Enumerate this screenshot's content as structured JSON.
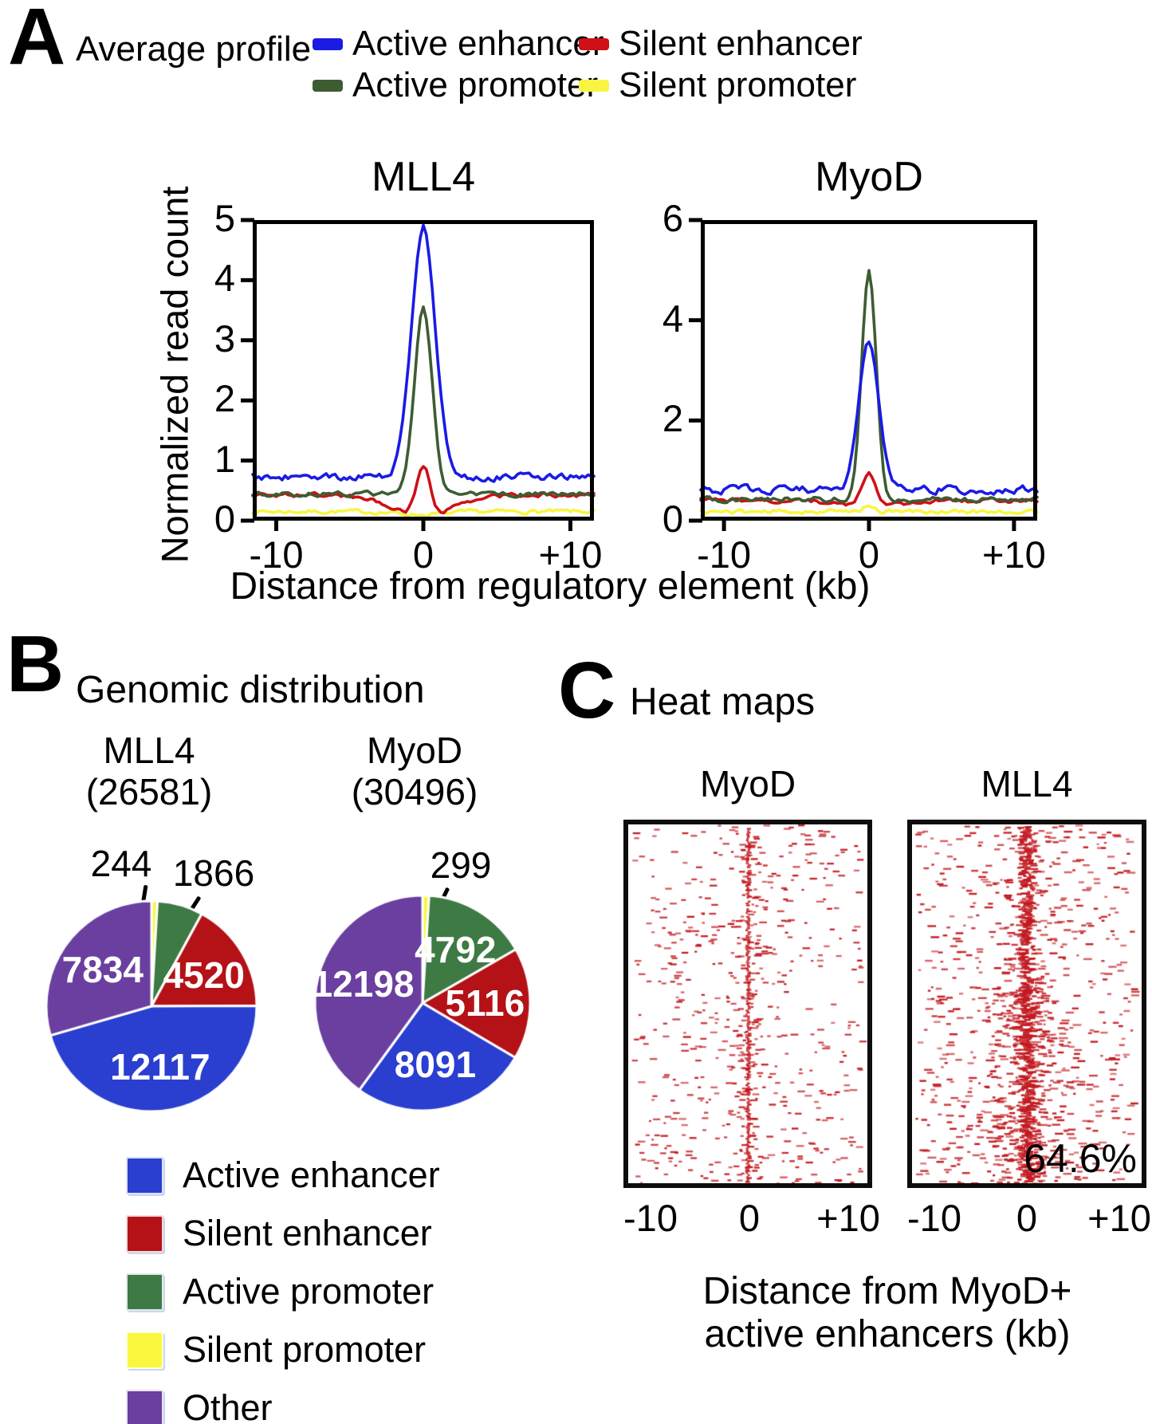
{
  "figure": {
    "panel_a": {
      "label": "A",
      "title": "Average profile",
      "legend": [
        {
          "label": "Active enhancer",
          "color": "#1b1be4"
        },
        {
          "label": "Silent enhancer",
          "color": "#cf1016"
        },
        {
          "label": "Active promoter",
          "color": "#3e5c32"
        },
        {
          "label": "Silent promoter",
          "color": "#f8f542"
        }
      ],
      "xlabel": "Distance from regulatory element (kb)",
      "ylabel": "Normalized read count"
    },
    "panel_b": {
      "label": "B",
      "title": "Genomic distribution",
      "legend": [
        {
          "label": "Active enhancer",
          "color": "#2a3fd0"
        },
        {
          "label": "Silent enhancer",
          "color": "#b41217"
        },
        {
          "label": "Active promoter",
          "color": "#3e7a44"
        },
        {
          "label": "Silent promoter",
          "color": "#f9f83e"
        },
        {
          "label": "Other",
          "color": "#6a3fa0"
        }
      ]
    },
    "panel_c": {
      "label": "C",
      "title": "Heat maps",
      "xlabel_line1": "Distance from MyoD+",
      "xlabel_line2": "active enhancers (kb)"
    }
  },
  "chart_data": [
    {
      "type": "line",
      "title": "MLL4",
      "ylabel": "Normalized read count",
      "xlabel": "Distance from regulatory element (kb)",
      "xlim": [
        -11.6,
        11.6
      ],
      "ylim": [
        0,
        5
      ],
      "yticks": [
        0,
        1,
        2,
        3,
        4,
        5
      ],
      "xticks": [
        {
          "v": -10,
          "label": "-10"
        },
        {
          "v": 0,
          "label": "0"
        },
        {
          "v": 10,
          "label": "+10"
        }
      ],
      "peak_readings": {
        "Active enhancer": 4.9,
        "Active promoter": 3.5,
        "Silent enhancer": 0.9,
        "Silent promoter": 0.15
      },
      "series": [
        {
          "name": "Silent promoter",
          "color": "#f8f542",
          "baseline": 0.15,
          "peak": 0,
          "peak_sigma": 0.5,
          "dip": 0.05,
          "dip_sigma": 1.6,
          "noise": 0.03
        },
        {
          "name": "Silent enhancer",
          "color": "#cf1016",
          "baseline": 0.43,
          "peak": 0.82,
          "peak_sigma": 0.45,
          "dip": 0.33,
          "dip_sigma": 2.2,
          "noise": 0.03
        },
        {
          "name": "Active promoter",
          "color": "#3e5c32",
          "baseline": 0.44,
          "peak": 3.06,
          "peak_sigma": 0.6,
          "dip": 0,
          "dip_sigma": 1,
          "noise": 0.035
        },
        {
          "name": "Active enhancer",
          "color": "#1b1be4",
          "baseline": 0.73,
          "peak": 4.17,
          "peak_sigma": 0.8,
          "dip": 0,
          "dip_sigma": 1,
          "noise": 0.05
        }
      ]
    },
    {
      "type": "line",
      "title": "MyoD",
      "xlabel": "Distance from regulatory element (kb)",
      "xlim": [
        -11.6,
        11.6
      ],
      "ylim": [
        0,
        6
      ],
      "yticks": [
        0,
        2,
        4,
        6
      ],
      "xticks": [
        {
          "v": -10,
          "label": "-10"
        },
        {
          "v": 0,
          "label": "0"
        },
        {
          "v": 10,
          "label": "+10"
        }
      ],
      "peak_readings": {
        "Active promoter": 5.0,
        "Active enhancer": 3.6,
        "Silent enhancer": 1.05,
        "Silent promoter": 0.3
      },
      "series": [
        {
          "name": "Silent promoter",
          "color": "#f8f542",
          "baseline": 0.18,
          "peak": 0.14,
          "peak_sigma": 0.35,
          "dip": 0,
          "dip_sigma": 1,
          "noise": 0.035
        },
        {
          "name": "Silent enhancer",
          "color": "#cf1016",
          "baseline": 0.4,
          "peak": 0.66,
          "peak_sigma": 0.5,
          "dip": 0.12,
          "dip_sigma": 2,
          "noise": 0.035
        },
        {
          "name": "Active promoter",
          "color": "#3e5c32",
          "baseline": 0.42,
          "peak": 4.58,
          "peak_sigma": 0.5,
          "dip": 0,
          "dip_sigma": 1,
          "noise": 0.045
        },
        {
          "name": "Active enhancer",
          "color": "#1b1be4",
          "baseline": 0.62,
          "peak": 2.98,
          "peak_sigma": 0.68,
          "dip": 0,
          "dip_sigma": 1,
          "noise": 0.065
        }
      ]
    },
    {
      "type": "pie",
      "title": "MLL4",
      "total_label": "(26581)",
      "total": 26581,
      "r": 132,
      "slices": [
        {
          "label": "Silent promoter",
          "value": 244,
          "color": "#f9f83e",
          "label_inside": false
        },
        {
          "label": "Active promoter",
          "value": 1866,
          "color": "#3e7a44",
          "label_inside": false
        },
        {
          "label": "Silent enhancer",
          "value": 4520,
          "color": "#b41217",
          "label_inside": true
        },
        {
          "label": "Active enhancer",
          "value": 12117,
          "color": "#2a3fd0",
          "label_inside": true
        },
        {
          "label": "Other",
          "value": 7834,
          "color": "#6a3fa0",
          "label_inside": true
        }
      ]
    },
    {
      "type": "pie",
      "title": "MyoD",
      "total_label": "(30496)",
      "total": 30496,
      "r": 135,
      "slices": [
        {
          "label": "Silent promoter",
          "value": 299,
          "color": "#f9f83e",
          "label_inside": false
        },
        {
          "label": "Active promoter",
          "value": 4792,
          "color": "#3e7a44",
          "label_inside": true
        },
        {
          "label": "Silent enhancer",
          "value": 5116,
          "color": "#b41217",
          "label_inside": true
        },
        {
          "label": "Active enhancer",
          "value": 8091,
          "color": "#2a3fd0",
          "label_inside": true
        },
        {
          "label": "Other",
          "value": 12198,
          "color": "#6a3fa0",
          "label_inside": true
        }
      ]
    },
    {
      "type": "heatmap",
      "title": "MyoD",
      "band": "narrow",
      "dot_color": "#c2191f",
      "xticks": [
        "-10",
        "0",
        "+10"
      ]
    },
    {
      "type": "heatmap",
      "title": "MLL4",
      "band": "wide",
      "dot_color": "#c2191f",
      "annotation": "64.6%",
      "xticks": [
        "-10",
        "0",
        "+10"
      ]
    }
  ]
}
